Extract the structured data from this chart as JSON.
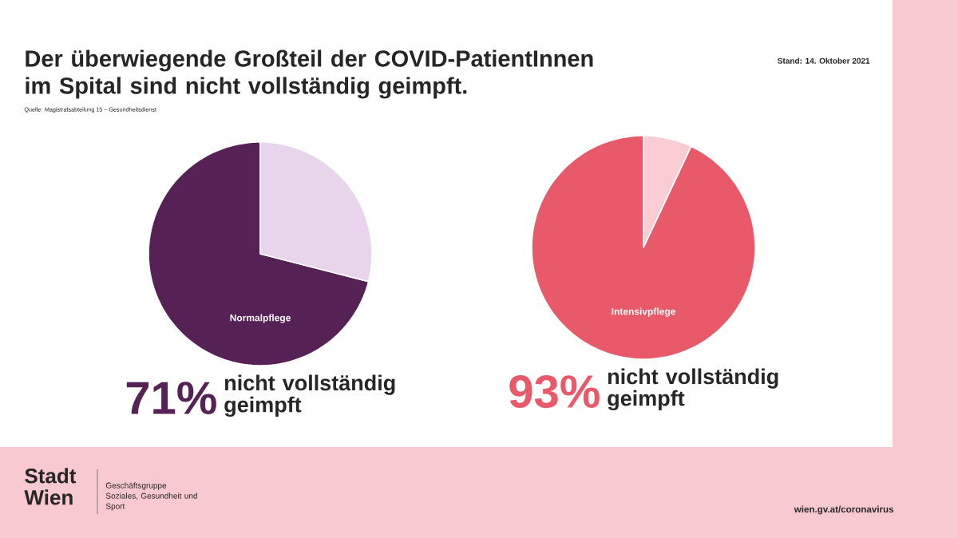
{
  "chart_data": [
    {
      "type": "other",
      "title": "Der überwiegende Großteil der COVID-PatientInnen im Spital sind nicht vollständig geimpft.",
      "annotations": [
        "Stand: 14. Oktober 2021",
        "Quelle: Magistratsabteilung 15 – Gesundheitsdienst",
        "Stadt Wien",
        "Geschäftsgruppe Soziales, Gesundheit und Sport",
        "wien.gv.at/coronavirus"
      ]
    },
    {
      "type": "pie",
      "title": "Normalpflege",
      "categories": [
        "nicht vollständig geimpft",
        null
      ],
      "values": [
        71,
        29
      ],
      "colors": [
        "#562155",
        "#e8d5ec"
      ],
      "value_labels": [
        "71%",
        null
      ]
    },
    {
      "type": "pie",
      "title": "Intensivpflege",
      "categories": [
        "nicht vollständig geimpft",
        null
      ],
      "values": [
        93,
        7
      ],
      "colors": [
        "#e85a6a",
        "#f9cdd3"
      ],
      "value_labels": [
        "93%",
        null
      ]
    }
  ]
}
